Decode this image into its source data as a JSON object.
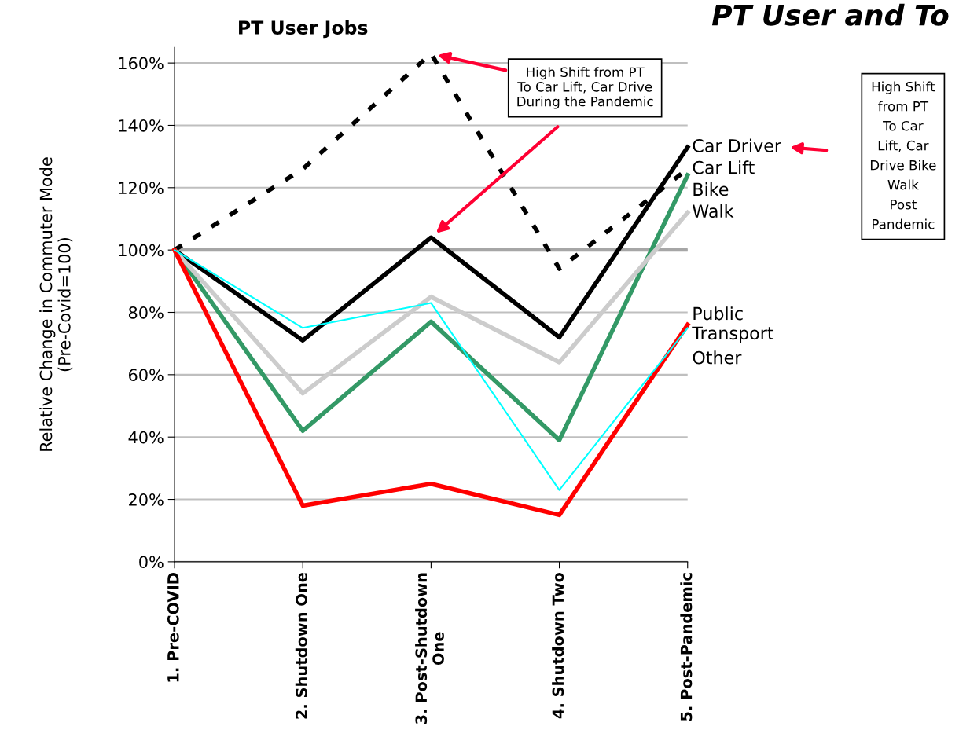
{
  "chart_data": {
    "type": "line",
    "title": "PT User Jobs",
    "ylabel": "Relative Change in Commuter Mode\n(Pre-Covid=100)",
    "categories": [
      "1. Pre-COVID",
      "2. Shutdown One",
      "3. Post-Shutdown\nOne",
      "4. Shutdown Two",
      "5. Post-Pandemic"
    ],
    "series": [
      {
        "name": "Car Driver",
        "color": "#000000",
        "line_style": "solid",
        "values": [
          100,
          71,
          104,
          72,
          133
        ]
      },
      {
        "name": "Car Lift",
        "color": "#000000",
        "line_style": "dotted",
        "values": [
          100,
          126,
          163,
          94,
          126
        ]
      },
      {
        "name": "Bike",
        "color": "#339966",
        "line_style": "solid",
        "values": [
          100,
          42,
          77,
          39,
          124
        ]
      },
      {
        "name": "Walk",
        "color": "#cccccc",
        "line_style": "solid",
        "values": [
          100,
          54,
          85,
          64,
          112
        ]
      },
      {
        "name": "Public\nTransport",
        "color": "#ff0000",
        "line_style": "solid",
        "values": [
          100,
          18,
          25,
          15,
          76
        ]
      },
      {
        "name": "Other",
        "color": "#00ffff",
        "line_style": "solid",
        "values": [
          100,
          75,
          83,
          23,
          75
        ]
      }
    ],
    "ylim": [
      0,
      165
    ],
    "yticks": [
      {
        "value": 0,
        "label": "0%"
      },
      {
        "value": 20,
        "label": "20%"
      },
      {
        "value": 40,
        "label": "40%"
      },
      {
        "value": 60,
        "label": "60%"
      },
      {
        "value": 80,
        "label": "80%"
      },
      {
        "value": 100,
        "label": "100%"
      },
      {
        "value": 120,
        "label": "120%"
      },
      {
        "value": 140,
        "label": "140%"
      },
      {
        "value": 160,
        "label": "160%"
      }
    ],
    "grid": "y",
    "legend": false,
    "marker": "none",
    "ref_lines": [
      {
        "axis": "y",
        "value": 100,
        "color": "#a6a6a6"
      }
    ],
    "annotations": [
      "High Shift from PT\nTo Car Lift, Car Drive\nDuring the Pandemic",
      "High Shift\nfrom PT\nTo Car\nLift, Car\nDrive Bike\nWalk\nPost\nPandemic",
      "PT User and To"
    ]
  }
}
